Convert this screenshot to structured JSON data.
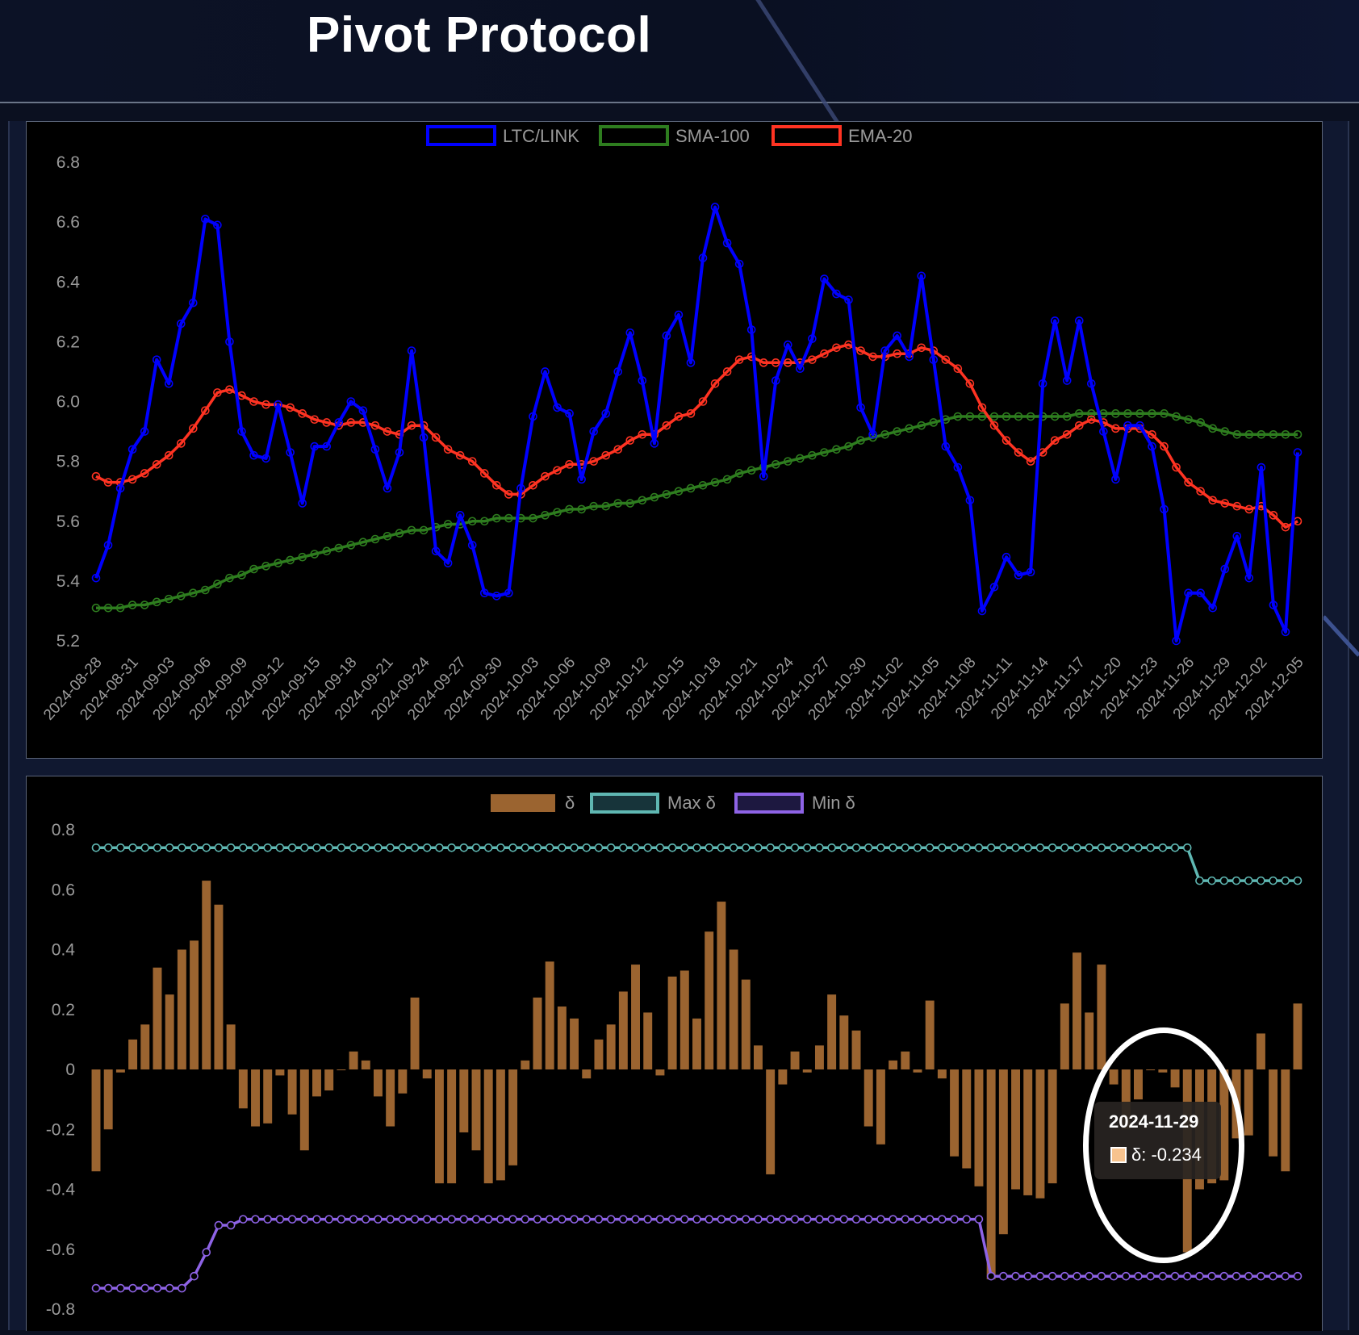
{
  "header": {
    "title": "Pivot Protocol"
  },
  "colors": {
    "price": "#0000ff",
    "sma": "#2e7d1f",
    "ema": "#ff3322",
    "delta": "#9b6430",
    "max": "#5fb7b2",
    "min": "#8e63e6",
    "tooltip_swatch": "#f7c38e"
  },
  "chart_data": [
    {
      "type": "line",
      "legend": [
        "LTC/LINK",
        "SMA-100",
        "EMA-20"
      ],
      "x_tick_labels": [
        "2024-08-28",
        "2024-08-31",
        "2024-09-03",
        "2024-09-06",
        "2024-09-09",
        "2024-09-12",
        "2024-09-15",
        "2024-09-18",
        "2024-09-21",
        "2024-09-24",
        "2024-09-27",
        "2024-09-30",
        "2024-10-03",
        "2024-10-06",
        "2024-10-09",
        "2024-10-12",
        "2024-10-15",
        "2024-10-18",
        "2024-10-21",
        "2024-10-24",
        "2024-10-27",
        "2024-10-30",
        "2024-11-02",
        "2024-11-05",
        "2024-11-08",
        "2024-11-11",
        "2024-11-14",
        "2024-11-17",
        "2024-11-20",
        "2024-11-23",
        "2024-11-26",
        "2024-11-29",
        "2024-12-02",
        "2024-12-05"
      ],
      "y_tick_labels": [
        "6.8",
        "6.6",
        "6.4",
        "6.2",
        "6.0",
        "5.8",
        "5.6",
        "5.4",
        "5.2"
      ],
      "ylim": [
        5.2,
        6.8
      ],
      "legend_position": "top-center",
      "series": [
        {
          "name": "LTC/LINK",
          "values": [
            5.41,
            5.52,
            5.71,
            5.84,
            5.9,
            6.14,
            6.06,
            6.26,
            6.33,
            6.61,
            6.59,
            6.2,
            5.9,
            5.82,
            5.81,
            5.99,
            5.83,
            5.66,
            5.85,
            5.85,
            5.93,
            6.0,
            5.97,
            5.84,
            5.71,
            5.83,
            6.17,
            5.88,
            5.5,
            5.46,
            5.62,
            5.52,
            5.36,
            5.35,
            5.36,
            5.71,
            5.95,
            6.1,
            5.98,
            5.96,
            5.74,
            5.9,
            5.96,
            6.1,
            6.23,
            6.07,
            5.86,
            6.22,
            6.29,
            6.13,
            6.48,
            6.65,
            6.53,
            6.46,
            6.24,
            5.75,
            6.07,
            6.19,
            6.11,
            6.21,
            6.41,
            6.36,
            6.34,
            5.98,
            5.89,
            6.17,
            6.22,
            6.15,
            6.42,
            6.14,
            5.85,
            5.78,
            5.67,
            5.3,
            5.38,
            5.48,
            5.42,
            5.43,
            6.06,
            6.27,
            6.07,
            6.27,
            6.06,
            5.9,
            5.74,
            5.92,
            5.92,
            5.85,
            5.64,
            5.2,
            5.36,
            5.36,
            5.31,
            5.44,
            5.55,
            5.41,
            5.78,
            5.32,
            5.23,
            5.83
          ]
        },
        {
          "name": "SMA-100",
          "values": [
            5.31,
            5.31,
            5.31,
            5.32,
            5.32,
            5.33,
            5.34,
            5.35,
            5.36,
            5.37,
            5.39,
            5.41,
            5.42,
            5.44,
            5.45,
            5.46,
            5.47,
            5.48,
            5.49,
            5.5,
            5.51,
            5.52,
            5.53,
            5.54,
            5.55,
            5.56,
            5.57,
            5.57,
            5.58,
            5.59,
            5.59,
            5.6,
            5.6,
            5.61,
            5.61,
            5.61,
            5.61,
            5.62,
            5.63,
            5.64,
            5.64,
            5.65,
            5.65,
            5.66,
            5.66,
            5.67,
            5.68,
            5.69,
            5.7,
            5.71,
            5.72,
            5.73,
            5.74,
            5.76,
            5.77,
            5.78,
            5.79,
            5.8,
            5.81,
            5.82,
            5.83,
            5.84,
            5.85,
            5.87,
            5.88,
            5.89,
            5.9,
            5.91,
            5.92,
            5.93,
            5.94,
            5.95,
            5.95,
            5.95,
            5.95,
            5.95,
            5.95,
            5.95,
            5.95,
            5.95,
            5.95,
            5.96,
            5.96,
            5.96,
            5.96,
            5.96,
            5.96,
            5.96,
            5.96,
            5.95,
            5.94,
            5.93,
            5.91,
            5.9,
            5.89,
            5.89,
            5.89,
            5.89,
            5.89,
            5.89
          ]
        },
        {
          "name": "EMA-20",
          "values": [
            5.75,
            5.73,
            5.73,
            5.74,
            5.76,
            5.79,
            5.82,
            5.86,
            5.91,
            5.97,
            6.03,
            6.04,
            6.02,
            6.0,
            5.99,
            5.99,
            5.98,
            5.96,
            5.94,
            5.93,
            5.92,
            5.93,
            5.93,
            5.92,
            5.9,
            5.89,
            5.92,
            5.92,
            5.88,
            5.84,
            5.82,
            5.8,
            5.76,
            5.72,
            5.69,
            5.69,
            5.72,
            5.75,
            5.77,
            5.79,
            5.79,
            5.8,
            5.82,
            5.84,
            5.87,
            5.89,
            5.89,
            5.92,
            5.95,
            5.96,
            6.0,
            6.06,
            6.1,
            6.14,
            6.15,
            6.13,
            6.13,
            6.13,
            6.13,
            6.14,
            6.16,
            6.18,
            6.19,
            6.17,
            6.15,
            6.15,
            6.16,
            6.16,
            6.18,
            6.17,
            6.14,
            6.11,
            6.06,
            5.98,
            5.92,
            5.87,
            5.83,
            5.8,
            5.83,
            5.87,
            5.89,
            5.92,
            5.94,
            5.93,
            5.91,
            5.91,
            5.91,
            5.89,
            5.85,
            5.78,
            5.73,
            5.7,
            5.67,
            5.66,
            5.65,
            5.64,
            5.65,
            5.62,
            5.58,
            5.6
          ]
        }
      ]
    },
    {
      "type": "bar",
      "legend": [
        "δ",
        "Max δ",
        "Min δ"
      ],
      "y_tick_labels": [
        "0.8",
        "0.6",
        "0.4",
        "0.2",
        "0",
        "-0.2",
        "-0.4",
        "-0.6",
        "-0.8"
      ],
      "ylim": [
        -0.8,
        0.8
      ],
      "legend_position": "top-center",
      "series": [
        {
          "name": "δ",
          "values": [
            -0.34,
            -0.2,
            -0.01,
            0.1,
            0.15,
            0.34,
            0.25,
            0.4,
            0.43,
            0.63,
            0.55,
            0.15,
            -0.13,
            -0.19,
            -0.18,
            -0.02,
            -0.15,
            -0.27,
            -0.09,
            -0.07,
            0.0,
            0.06,
            0.03,
            -0.09,
            -0.19,
            -0.08,
            0.24,
            -0.03,
            -0.38,
            -0.38,
            -0.21,
            -0.27,
            -0.38,
            -0.37,
            -0.32,
            0.03,
            0.24,
            0.36,
            0.21,
            0.17,
            -0.03,
            0.1,
            0.15,
            0.26,
            0.35,
            0.19,
            -0.02,
            0.31,
            0.33,
            0.17,
            0.46,
            0.56,
            0.4,
            0.3,
            0.08,
            -0.35,
            -0.05,
            0.06,
            -0.01,
            0.08,
            0.25,
            0.18,
            0.13,
            -0.19,
            -0.25,
            0.03,
            0.06,
            -0.01,
            0.23,
            -0.03,
            -0.29,
            -0.33,
            -0.39,
            -0.7,
            -0.55,
            -0.4,
            -0.42,
            -0.43,
            -0.38,
            0.22,
            0.39,
            0.19,
            0.35,
            -0.05,
            -0.2,
            -0.1,
            0.0,
            -0.01,
            -0.06,
            -0.61,
            -0.4,
            -0.38,
            -0.37,
            -0.23,
            -0.22,
            0.12,
            -0.29,
            -0.34,
            0.22
          ]
        },
        {
          "name": "Max δ",
          "values": [
            0.74,
            0.74,
            0.74,
            0.74,
            0.74,
            0.74,
            0.74,
            0.74,
            0.74,
            0.74,
            0.74,
            0.74,
            0.74,
            0.74,
            0.74,
            0.74,
            0.74,
            0.74,
            0.74,
            0.74,
            0.74,
            0.74,
            0.74,
            0.74,
            0.74,
            0.74,
            0.74,
            0.74,
            0.74,
            0.74,
            0.74,
            0.74,
            0.74,
            0.74,
            0.74,
            0.74,
            0.74,
            0.74,
            0.74,
            0.74,
            0.74,
            0.74,
            0.74,
            0.74,
            0.74,
            0.74,
            0.74,
            0.74,
            0.74,
            0.74,
            0.74,
            0.74,
            0.74,
            0.74,
            0.74,
            0.74,
            0.74,
            0.74,
            0.74,
            0.74,
            0.74,
            0.74,
            0.74,
            0.74,
            0.74,
            0.74,
            0.74,
            0.74,
            0.74,
            0.74,
            0.74,
            0.74,
            0.74,
            0.74,
            0.74,
            0.74,
            0.74,
            0.74,
            0.74,
            0.74,
            0.74,
            0.74,
            0.74,
            0.74,
            0.74,
            0.74,
            0.74,
            0.74,
            0.74,
            0.74,
            0.63,
            0.63,
            0.63,
            0.63,
            0.63,
            0.63,
            0.63,
            0.63,
            0.63
          ]
        },
        {
          "name": "Min δ",
          "values": [
            -0.73,
            -0.73,
            -0.73,
            -0.73,
            -0.73,
            -0.73,
            -0.73,
            -0.73,
            -0.69,
            -0.61,
            -0.52,
            -0.52,
            -0.5,
            -0.5,
            -0.5,
            -0.5,
            -0.5,
            -0.5,
            -0.5,
            -0.5,
            -0.5,
            -0.5,
            -0.5,
            -0.5,
            -0.5,
            -0.5,
            -0.5,
            -0.5,
            -0.5,
            -0.5,
            -0.5,
            -0.5,
            -0.5,
            -0.5,
            -0.5,
            -0.5,
            -0.5,
            -0.5,
            -0.5,
            -0.5,
            -0.5,
            -0.5,
            -0.5,
            -0.5,
            -0.5,
            -0.5,
            -0.5,
            -0.5,
            -0.5,
            -0.5,
            -0.5,
            -0.5,
            -0.5,
            -0.5,
            -0.5,
            -0.5,
            -0.5,
            -0.5,
            -0.5,
            -0.5,
            -0.5,
            -0.5,
            -0.5,
            -0.5,
            -0.5,
            -0.5,
            -0.5,
            -0.5,
            -0.5,
            -0.5,
            -0.5,
            -0.5,
            -0.5,
            -0.69,
            -0.69,
            -0.69,
            -0.69,
            -0.69,
            -0.69,
            -0.69,
            -0.69,
            -0.69,
            -0.69,
            -0.69,
            -0.69,
            -0.69,
            -0.69,
            -0.69,
            -0.69,
            -0.69,
            -0.69,
            -0.69,
            -0.69,
            -0.69,
            -0.69,
            -0.69,
            -0.69,
            -0.69,
            -0.69
          ]
        }
      ]
    }
  ],
  "tooltip": {
    "title": "2024-11-29",
    "label": "δ: -0.234"
  }
}
